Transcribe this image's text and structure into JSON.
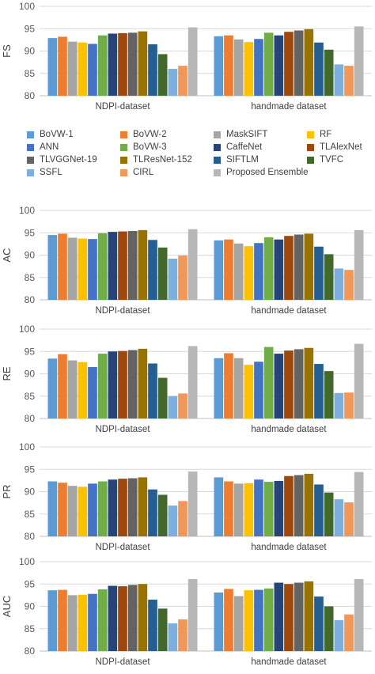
{
  "legend_title": "",
  "chart_data": [
    {
      "type": "bar",
      "ylabel": "FS",
      "ylim": [
        80,
        100
      ],
      "yticks": [
        80,
        85,
        90,
        95,
        100
      ],
      "categories": [
        "NDPI-dataset",
        "handmade dataset"
      ],
      "series": [
        {
          "name": "BoVW-1",
          "values": [
            92.9,
            93.3
          ]
        },
        {
          "name": "BoVW-2",
          "values": [
            93.2,
            93.5
          ]
        },
        {
          "name": "MaskSIFT",
          "values": [
            92.1,
            92.6
          ]
        },
        {
          "name": "RF",
          "values": [
            91.9,
            92.0
          ]
        },
        {
          "name": "ANN",
          "values": [
            91.6,
            92.7
          ]
        },
        {
          "name": "BoVW-3",
          "values": [
            93.5,
            94.1
          ]
        },
        {
          "name": "CaffeNet",
          "values": [
            93.9,
            93.5
          ]
        },
        {
          "name": "TLAlexNet",
          "values": [
            94.0,
            94.3
          ]
        },
        {
          "name": "TLVGGNet-19",
          "values": [
            94.1,
            94.6
          ]
        },
        {
          "name": "TLResNet-152",
          "values": [
            94.4,
            94.9
          ]
        },
        {
          "name": "SIFTLM",
          "values": [
            91.5,
            91.9
          ]
        },
        {
          "name": "TVFC",
          "values": [
            89.3,
            90.3
          ]
        },
        {
          "name": "SSFL",
          "values": [
            86.0,
            87.0
          ]
        },
        {
          "name": "CIRL",
          "values": [
            86.7,
            86.7
          ]
        },
        {
          "name": "Proposed Ensemble",
          "values": [
            95.3,
            95.5
          ]
        }
      ]
    },
    {
      "type": "bar",
      "ylabel": "AC",
      "ylim": [
        80,
        100
      ],
      "yticks": [
        80,
        85,
        90,
        95,
        100
      ],
      "categories": [
        "NDPI-dataset",
        "handmade dataset"
      ],
      "series": [
        {
          "name": "BoVW-1",
          "values": [
            94.5,
            93.3
          ]
        },
        {
          "name": "BoVW-2",
          "values": [
            94.8,
            93.5
          ]
        },
        {
          "name": "MaskSIFT",
          "values": [
            93.9,
            92.6
          ]
        },
        {
          "name": "RF",
          "values": [
            93.7,
            92.0
          ]
        },
        {
          "name": "ANN",
          "values": [
            93.6,
            92.7
          ]
        },
        {
          "name": "BoVW-3",
          "values": [
            94.9,
            94.0
          ]
        },
        {
          "name": "CaffeNet",
          "values": [
            95.2,
            93.5
          ]
        },
        {
          "name": "TLAlexNet",
          "values": [
            95.3,
            94.3
          ]
        },
        {
          "name": "TLVGGNet-19",
          "values": [
            95.4,
            94.6
          ]
        },
        {
          "name": "TLResNet-152",
          "values": [
            95.6,
            94.8
          ]
        },
        {
          "name": "SIFTLM",
          "values": [
            93.4,
            91.9
          ]
        },
        {
          "name": "TVFC",
          "values": [
            91.7,
            90.2
          ]
        },
        {
          "name": "SSFL",
          "values": [
            89.2,
            87.0
          ]
        },
        {
          "name": "CIRL",
          "values": [
            89.9,
            86.7
          ]
        },
        {
          "name": "Proposed Ensemble",
          "values": [
            95.8,
            95.6
          ]
        }
      ]
    },
    {
      "type": "bar",
      "ylabel": "RE",
      "ylim": [
        80,
        100
      ],
      "yticks": [
        80,
        85,
        90,
        95,
        100
      ],
      "categories": [
        "NDPI-dataset",
        "handmade dataset"
      ],
      "series": [
        {
          "name": "BoVW-1",
          "values": [
            93.4,
            93.5
          ]
        },
        {
          "name": "BoVW-2",
          "values": [
            94.4,
            94.6
          ]
        },
        {
          "name": "MaskSIFT",
          "values": [
            93.0,
            93.5
          ]
        },
        {
          "name": "RF",
          "values": [
            92.6,
            92.0
          ]
        },
        {
          "name": "ANN",
          "values": [
            91.5,
            92.7
          ]
        },
        {
          "name": "BoVW-3",
          "values": [
            94.5,
            96.0
          ]
        },
        {
          "name": "CaffeNet",
          "values": [
            95.0,
            94.5
          ]
        },
        {
          "name": "TLAlexNet",
          "values": [
            95.1,
            95.2
          ]
        },
        {
          "name": "TLVGGNet-19",
          "values": [
            95.3,
            95.5
          ]
        },
        {
          "name": "TLResNet-152",
          "values": [
            95.6,
            95.8
          ]
        },
        {
          "name": "SIFTLM",
          "values": [
            92.3,
            92.2
          ]
        },
        {
          "name": "TVFC",
          "values": [
            89.1,
            90.6
          ]
        },
        {
          "name": "SSFL",
          "values": [
            85.0,
            85.7
          ]
        },
        {
          "name": "CIRL",
          "values": [
            85.6,
            85.8
          ]
        },
        {
          "name": "Proposed Ensemble",
          "values": [
            96.2,
            96.7
          ]
        }
      ]
    },
    {
      "type": "bar",
      "ylabel": "PR",
      "ylim": [
        80,
        100
      ],
      "yticks": [
        80,
        85,
        90,
        95,
        100
      ],
      "categories": [
        "NDPI-dataset",
        "handmade dataset"
      ],
      "series": [
        {
          "name": "BoVW-1",
          "values": [
            92.3,
            93.2
          ]
        },
        {
          "name": "BoVW-2",
          "values": [
            92.0,
            92.3
          ]
        },
        {
          "name": "MaskSIFT",
          "values": [
            91.3,
            91.8
          ]
        },
        {
          "name": "RF",
          "values": [
            91.1,
            91.9
          ]
        },
        {
          "name": "ANN",
          "values": [
            91.8,
            92.7
          ]
        },
        {
          "name": "BoVW-3",
          "values": [
            92.3,
            92.2
          ]
        },
        {
          "name": "CaffeNet",
          "values": [
            92.7,
            92.4
          ]
        },
        {
          "name": "TLAlexNet",
          "values": [
            92.9,
            93.5
          ]
        },
        {
          "name": "TLVGGNet-19",
          "values": [
            93.0,
            93.7
          ]
        },
        {
          "name": "TLResNet-152",
          "values": [
            93.2,
            94.0
          ]
        },
        {
          "name": "SIFTLM",
          "values": [
            90.5,
            91.6
          ]
        },
        {
          "name": "TVFC",
          "values": [
            89.3,
            89.8
          ]
        },
        {
          "name": "SSFL",
          "values": [
            86.9,
            88.3
          ]
        },
        {
          "name": "CIRL",
          "values": [
            87.9,
            87.6
          ]
        },
        {
          "name": "Proposed Ensemble",
          "values": [
            94.5,
            94.4
          ]
        }
      ]
    },
    {
      "type": "bar",
      "ylabel": "AUC",
      "ylim": [
        80,
        100
      ],
      "yticks": [
        80,
        85,
        90,
        95,
        100
      ],
      "categories": [
        "NDPI-dataset",
        "handmade dataset"
      ],
      "series": [
        {
          "name": "BoVW-1",
          "values": [
            93.6,
            93.1
          ]
        },
        {
          "name": "BoVW-2",
          "values": [
            93.7,
            93.9
          ]
        },
        {
          "name": "MaskSIFT",
          "values": [
            92.5,
            92.3
          ]
        },
        {
          "name": "RF",
          "values": [
            92.6,
            93.6
          ]
        },
        {
          "name": "ANN",
          "values": [
            92.8,
            93.7
          ]
        },
        {
          "name": "BoVW-3",
          "values": [
            93.8,
            94.0
          ]
        },
        {
          "name": "CaffeNet",
          "values": [
            94.6,
            95.3
          ]
        },
        {
          "name": "TLAlexNet",
          "values": [
            94.5,
            95.0
          ]
        },
        {
          "name": "TLVGGNet-19",
          "values": [
            94.8,
            95.3
          ]
        },
        {
          "name": "TLResNet-152",
          "values": [
            95.0,
            95.6
          ]
        },
        {
          "name": "SIFTLM",
          "values": [
            91.5,
            92.2
          ]
        },
        {
          "name": "TVFC",
          "values": [
            89.5,
            90.0
          ]
        },
        {
          "name": "SSFL",
          "values": [
            86.2,
            86.9
          ]
        },
        {
          "name": "CIRL",
          "values": [
            87.1,
            88.2
          ]
        },
        {
          "name": "Proposed Ensemble",
          "values": [
            96.1,
            96.1
          ]
        }
      ]
    }
  ],
  "colors": {
    "BoVW-1": "#5b9bd5",
    "BoVW-2": "#ed7d31",
    "MaskSIFT": "#a5a5a5",
    "RF": "#ffc000",
    "ANN": "#4472c4",
    "BoVW-3": "#70ad47",
    "CaffeNet": "#264478",
    "TLAlexNet": "#9e480e",
    "TLVGGNet-19": "#636363",
    "TLResNet-152": "#997300",
    "SIFTLM": "#255e91",
    "TVFC": "#43682b",
    "SSFL": "#7cafdd",
    "CIRL": "#f1975a",
    "Proposed Ensemble": "#b7b7b7"
  },
  "legend_placement": "between first and second chart"
}
